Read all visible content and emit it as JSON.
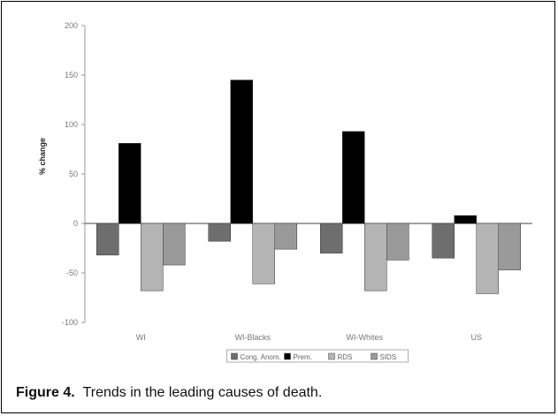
{
  "chart_data": {
    "type": "bar",
    "categories": [
      "WI",
      "WI-Blacks",
      "WI-Whites",
      "US"
    ],
    "series": [
      {
        "name": "Cong. Anom.",
        "values": [
          -32,
          -18,
          -30,
          -35
        ],
        "color": "#6e6e6e"
      },
      {
        "name": "Prem.",
        "values": [
          81,
          145,
          93,
          8
        ],
        "color": "#000000"
      },
      {
        "name": "RDS",
        "values": [
          -68,
          -61,
          -68,
          -71
        ],
        "color": "#b4b4b4"
      },
      {
        "name": "SIDS",
        "values": [
          -42,
          -26,
          -37,
          -47
        ],
        "color": "#9a9a9a"
      }
    ],
    "title": "",
    "xlabel": "",
    "ylabel": "% change",
    "ylim": [
      -100,
      200
    ],
    "yticks": [
      200,
      150,
      100,
      50,
      0,
      -50,
      -100
    ],
    "legend_position": "bottom",
    "grid": false
  },
  "caption": {
    "label": "Figure 4.",
    "text": "Trends in the leading causes of death."
  }
}
